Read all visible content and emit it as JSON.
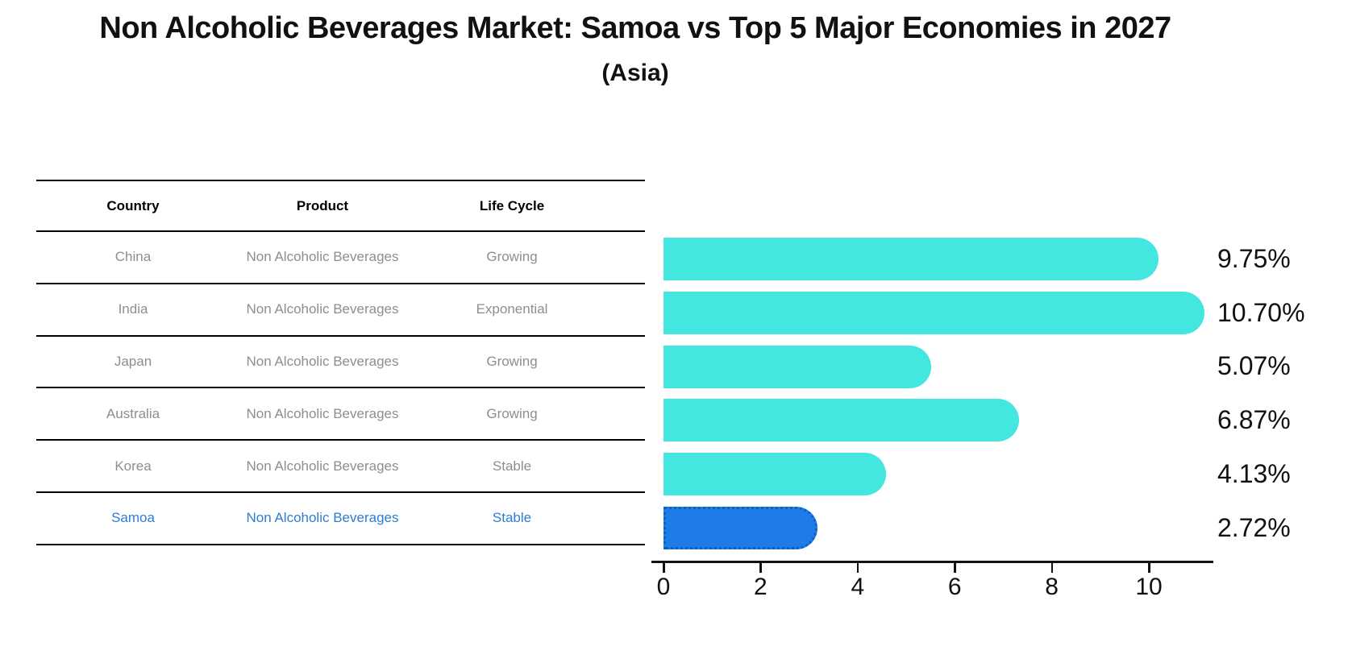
{
  "title": "Non Alcoholic Beverages Market: Samoa vs Top 5 Major Economies in 2027",
  "subtitle": "(Asia)",
  "table": {
    "columns": [
      "Country",
      "Product",
      "Life Cycle"
    ],
    "rows": [
      {
        "country": "China",
        "product": "Non Alcoholic Beverages",
        "life_cycle": "Growing",
        "highlight": false
      },
      {
        "country": "India",
        "product": "Non Alcoholic Beverages",
        "life_cycle": "Exponential",
        "highlight": false
      },
      {
        "country": "Japan",
        "product": "Non Alcoholic Beverages",
        "life_cycle": "Growing",
        "highlight": false
      },
      {
        "country": "Australia",
        "product": "Non Alcoholic Beverages",
        "life_cycle": "Growing",
        "highlight": false
      },
      {
        "country": "Korea",
        "product": "Non Alcoholic Beverages",
        "life_cycle": "Stable",
        "highlight": false
      },
      {
        "country": "Samoa",
        "product": "Non Alcoholic Beverages",
        "life_cycle": "Stable",
        "highlight": true
      }
    ]
  },
  "chart_data": {
    "type": "bar",
    "orientation": "horizontal",
    "title": "Non Alcoholic Beverages Market: Samoa vs Top 5 Major Economies in 2027 (Asia)",
    "categories": [
      "China",
      "India",
      "Japan",
      "Australia",
      "Korea",
      "Samoa"
    ],
    "values": [
      9.75,
      10.7,
      5.07,
      6.87,
      4.13,
      2.72
    ],
    "value_labels": [
      "9.75%",
      "10.70%",
      "5.07%",
      "6.87%",
      "4.13%",
      "2.72%"
    ],
    "highlight_index": 5,
    "xlabel": "",
    "ylabel": "",
    "xticks": [
      0,
      2,
      4,
      6,
      8,
      10
    ],
    "xlim": [
      0,
      11.3
    ],
    "grid": false,
    "legend": false,
    "bar_color": "#44E6E0",
    "highlight_color": "#1E7CE8",
    "highlight_edge_color": "#0D5FC8",
    "row_text_color": "#8e8e8e",
    "highlight_text_color": "#2D7DD2"
  }
}
